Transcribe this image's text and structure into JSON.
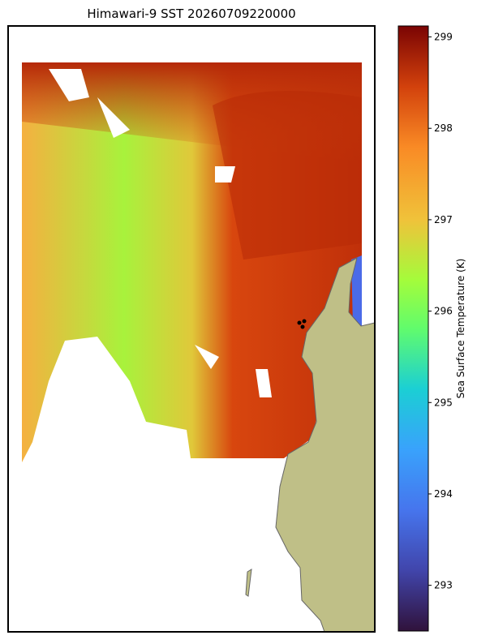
{
  "title": "Himawari-9 SST 20260709220000",
  "colorbar": {
    "label": "Sea Surface Temperature (K)",
    "lim": [
      292.5,
      299.12
    ],
    "ticks": [
      293,
      294,
      295,
      296,
      297,
      298,
      299
    ]
  }
}
